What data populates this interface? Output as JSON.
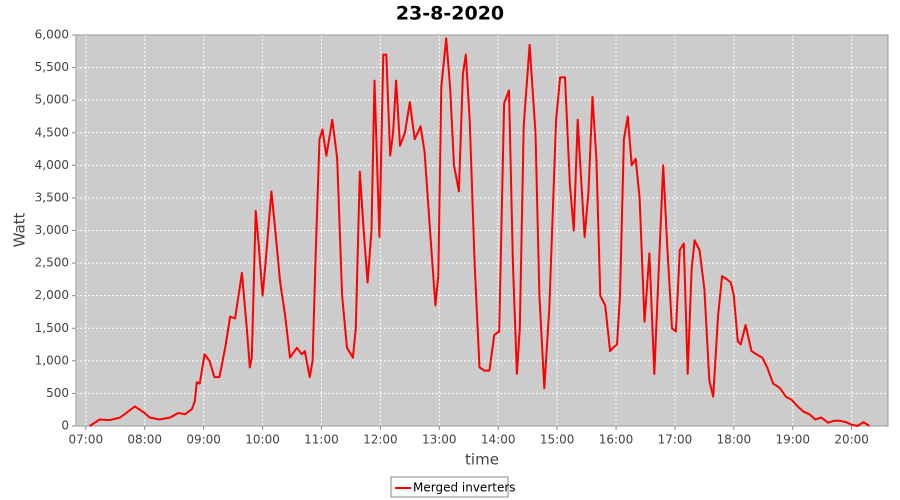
{
  "chart_data": {
    "type": "line",
    "title": "23-8-2020",
    "xlabel": "time",
    "ylabel": "Watt",
    "grid": true,
    "x": [
      "07:04",
      "07:14",
      "07:24",
      "07:35",
      "07:50",
      "08:00",
      "08:05",
      "08:15",
      "08:26",
      "08:34",
      "08:41",
      "08:48",
      "08:51",
      "08:53",
      "08:56",
      "09:01",
      "09:06",
      "09:11",
      "09:16",
      "09:22",
      "09:27",
      "09:32",
      "09:39",
      "09:44",
      "09:47",
      "09:49",
      "09:53",
      "09:56",
      "10:00",
      "10:03",
      "10:09",
      "10:13",
      "10:18",
      "10:23",
      "10:28",
      "10:35",
      "10:40",
      "10:43",
      "10:48",
      "10:51",
      "10:54",
      "10:58",
      "11:01",
      "11:05",
      "11:11",
      "11:16",
      "11:21",
      "11:26",
      "11:32",
      "11:35",
      "11:39",
      "11:43",
      "11:47",
      "11:51",
      "11:54",
      "11:59",
      "12:03",
      "12:06",
      "12:10",
      "12:13",
      "12:16",
      "12:20",
      "12:25",
      "12:30",
      "12:35",
      "12:41",
      "12:45",
      "12:51",
      "12:56",
      "12:59",
      "13:02",
      "13:07",
      "13:11",
      "13:15",
      "13:20",
      "13:24",
      "13:27",
      "13:31",
      "13:36",
      "13:41",
      "13:46",
      "13:51",
      "13:56",
      "14:01",
      "14:06",
      "14:11",
      "14:15",
      "14:19",
      "14:22",
      "14:26",
      "14:32",
      "14:38",
      "14:42",
      "14:47",
      "14:52",
      "14:59",
      "15:03",
      "15:08",
      "15:13",
      "15:17",
      "15:21",
      "15:24",
      "15:28",
      "15:32",
      "15:36",
      "15:40",
      "15:44",
      "15:49",
      "15:54",
      "15:57",
      "16:01",
      "16:04",
      "16:08",
      "16:12",
      "16:16",
      "16:20",
      "16:24",
      "16:29",
      "16:34",
      "16:39",
      "16:43",
      "16:48",
      "16:52",
      "16:57",
      "17:01",
      "17:05",
      "17:09",
      "17:13",
      "17:17",
      "17:20",
      "17:25",
      "17:30",
      "17:35",
      "17:39",
      "17:44",
      "17:48",
      "17:53",
      "17:57",
      "18:00",
      "18:04",
      "18:07",
      "18:12",
      "18:18",
      "18:23",
      "18:29",
      "18:34",
      "18:40",
      "18:47",
      "18:53",
      "18:59",
      "19:05",
      "19:11",
      "19:17",
      "19:23",
      "19:29",
      "19:36",
      "19:42",
      "19:48",
      "19:54",
      "20:00",
      "20:06",
      "20:12",
      "20:18"
    ],
    "series": [
      {
        "name": "Merged inverters",
        "color": "#ff0000",
        "values": [
          0,
          100,
          90,
          130,
          300,
          200,
          130,
          100,
          130,
          200,
          180,
          260,
          380,
          670,
          650,
          1100,
          1000,
          750,
          750,
          1200,
          1680,
          1650,
          2350,
          1500,
          900,
          1050,
          3300,
          2800,
          2000,
          2500,
          3600,
          3000,
          2200,
          1700,
          1050,
          1200,
          1100,
          1150,
          750,
          1000,
          2600,
          4400,
          4550,
          4150,
          4700,
          4100,
          2000,
          1200,
          1050,
          1500,
          3900,
          3000,
          2200,
          3000,
          5300,
          2900,
          5700,
          5700,
          4150,
          4500,
          5300,
          4300,
          4500,
          4970,
          4400,
          4600,
          4200,
          2900,
          1850,
          2300,
          5200,
          5950,
          5200,
          4000,
          3600,
          5400,
          5700,
          4700,
          2500,
          900,
          850,
          850,
          1400,
          1450,
          4950,
          5150,
          2500,
          800,
          1500,
          4600,
          5850,
          4500,
          2000,
          580,
          1800,
          4700,
          5350,
          5350,
          3700,
          3000,
          4700,
          3900,
          2900,
          3600,
          5050,
          4100,
          2000,
          1850,
          1150,
          1200,
          1250,
          2000,
          4400,
          4750,
          4000,
          4100,
          3500,
          1600,
          2650,
          800,
          2200,
          4000,
          2800,
          1500,
          1450,
          2700,
          2800,
          800,
          2400,
          2850,
          2700,
          2100,
          700,
          450,
          1700,
          2300,
          2250,
          2200,
          2000,
          1300,
          1250,
          1550,
          1150,
          1100,
          1050,
          900,
          650,
          580,
          450,
          400,
          300,
          220,
          180,
          100,
          130,
          50,
          80,
          80,
          60,
          20,
          0,
          60,
          0
        ]
      }
    ],
    "xlim": [
      "06:50",
      "20:37"
    ],
    "xticks": [
      "07:00",
      "08:00",
      "09:00",
      "10:00",
      "11:00",
      "12:00",
      "13:00",
      "14:00",
      "15:00",
      "16:00",
      "17:00",
      "18:00",
      "19:00",
      "20:00"
    ],
    "ylim": [
      0,
      6000
    ],
    "yticks": [
      0,
      500,
      {
        "value": 1000,
        "label": "1,000"
      },
      {
        "value": 1500,
        "label": "1,500"
      },
      {
        "value": 2000,
        "label": "2,000"
      },
      {
        "value": 2500,
        "label": "2,500"
      },
      {
        "value": 3000,
        "label": "3,000"
      },
      {
        "value": 3500,
        "label": "3,500"
      },
      {
        "value": 4000,
        "label": "4,000"
      },
      {
        "value": 4500,
        "label": "4,500"
      },
      {
        "value": 5000,
        "label": "5,000"
      },
      {
        "value": 5500,
        "label": "5,500"
      },
      {
        "value": 6000,
        "label": "6,000"
      }
    ]
  }
}
